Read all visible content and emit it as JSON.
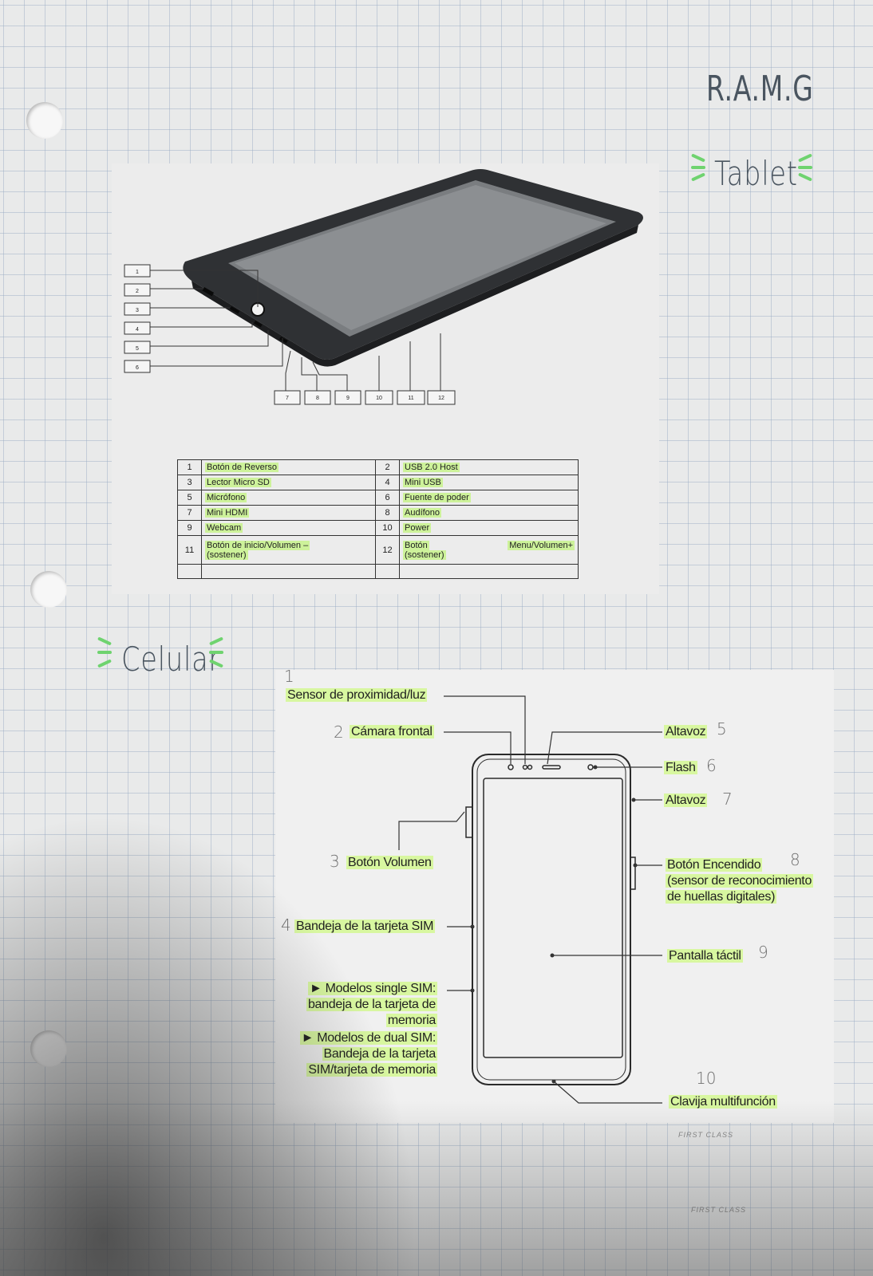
{
  "header": {
    "initials": "R.A.M.G"
  },
  "tablet": {
    "title": "Tablet",
    "callout_numbers": [
      "1",
      "2",
      "3",
      "4",
      "5",
      "6",
      "7",
      "8",
      "9",
      "10",
      "11",
      "12"
    ],
    "table": [
      {
        "n1": "1",
        "l1": "Botón de Reverso",
        "n2": "2",
        "l2": "USB 2.0 Host"
      },
      {
        "n1": "3",
        "l1": "Lector Micro SD",
        "n2": "4",
        "l2": "Mini USB"
      },
      {
        "n1": "5",
        "l1": "Micrófono",
        "n2": "6",
        "l2": "Fuente de poder"
      },
      {
        "n1": "7",
        "l1": "Mini HDMI",
        "n2": "8",
        "l2": "Audífono"
      },
      {
        "n1": "9",
        "l1": "Webcam",
        "n2": "10",
        "l2": "Power"
      },
      {
        "n1": "11",
        "l1": "Botón de inicio/Volumen –",
        "l1b": "(sostener)",
        "n2": "12",
        "l2": "Botón",
        "l2_right": "Menu/Volumen+",
        "l2b": "(sostener)"
      }
    ]
  },
  "celular": {
    "title": "Celular",
    "labels": {
      "sensor": "Sensor de proximidad/luz",
      "camara": "Cámara frontal",
      "volumen": "Botón Volumen",
      "bandeja": "Bandeja de la tarjeta SIM",
      "single_1": "► Modelos single SIM:",
      "single_2": "bandeja de la tarjeta de",
      "single_3": "memoria",
      "dual_1": "► Modelos de  dual SIM:",
      "dual_2": "Bandeja de la tarjeta",
      "dual_3": "SIM/tarjeta de memoria",
      "altavoz_top": "Altavoz",
      "flash": "Flash",
      "altavoz_side": "Altavoz",
      "encendido_1": "Botón Encendido",
      "encendido_2": "(sensor de reconocimiento",
      "encendido_3": "de huellas digitales)",
      "pantalla": "Pantalla táctil",
      "clavija": "Clavija multifunción"
    },
    "hand_numbers": {
      "n1": "1",
      "n2": "2",
      "n3": "3",
      "n4": "4",
      "n5": "5",
      "n6": "6",
      "n7": "7",
      "n8": "8",
      "n9": "9",
      "n10": "10"
    }
  },
  "footer": {
    "mark": "FIRST CLASS"
  }
}
